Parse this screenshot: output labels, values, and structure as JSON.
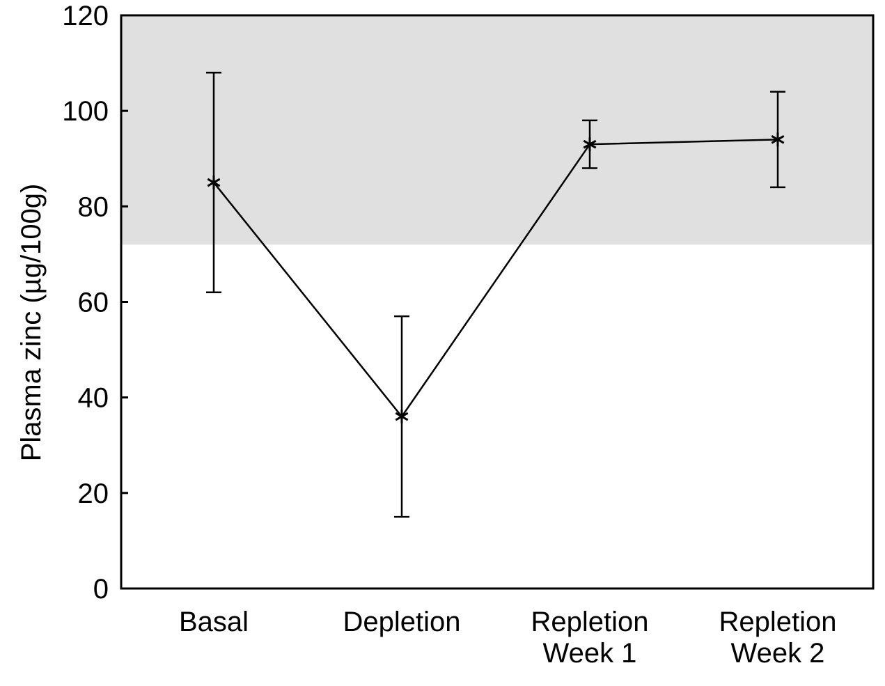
{
  "chart_data": {
    "type": "line",
    "title": "",
    "xlabel": "",
    "ylabel": "Plasma zinc (µg/100g)",
    "ylim": [
      0,
      120
    ],
    "yticks": [
      0,
      20,
      40,
      60,
      80,
      100,
      120
    ],
    "categories": [
      [
        "Basal"
      ],
      [
        "Depletion"
      ],
      [
        "Repletion",
        "Week 1"
      ],
      [
        "Repletion",
        "Week 2"
      ]
    ],
    "series": [
      {
        "values": [
          85,
          36,
          93,
          94
        ],
        "error_low": [
          62,
          15,
          88,
          84
        ],
        "error_high": [
          108,
          57,
          98,
          104
        ]
      }
    ],
    "reference_band": {
      "from": 72,
      "to": 120,
      "color": "#e0e0e0"
    },
    "grid": false,
    "legend": "none",
    "marker": "asterisk"
  }
}
